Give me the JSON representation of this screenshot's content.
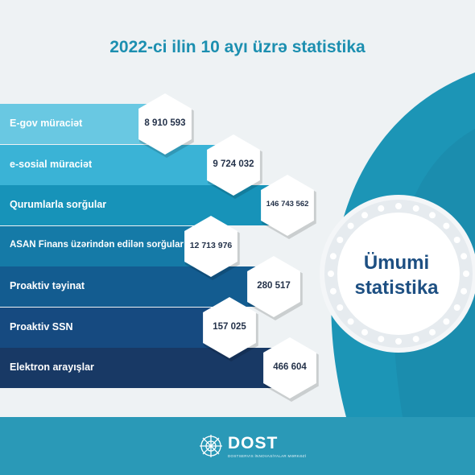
{
  "title": "2022-ci ilin 10 ayı üzrə statistika",
  "items": [
    {
      "label": "E-gov müraciət",
      "value": "8 910 593",
      "color": "#69c8e2"
    },
    {
      "label": "e-sosial müraciət",
      "value": "9 724 032",
      "color": "#3ab3d6"
    },
    {
      "label": "Qurumlarla sorğular",
      "value": "146 743 562",
      "color": "#1793b9"
    },
    {
      "label": "ASAN Finans üzərindən edilən sorğular",
      "value": "12 713 976",
      "color": "#157aa7"
    },
    {
      "label": "Proaktiv təyinat",
      "value": "280 517",
      "color": "#135c90"
    },
    {
      "label": "Proaktiv SSN",
      "value": "157 025",
      "color": "#164a80"
    },
    {
      "label": "Elektron arayışlar",
      "value": "466 604",
      "color": "#183965"
    }
  ],
  "center": {
    "line1": "Ümumi",
    "line2": "statistika"
  },
  "footer": {
    "brand": "DOST",
    "subtitle": "DOSTSERVIS İNNOVASİYALAR MƏRKƏZİ"
  },
  "colors": {
    "teal": "#1c95b6",
    "bg": "#eef2f4"
  }
}
